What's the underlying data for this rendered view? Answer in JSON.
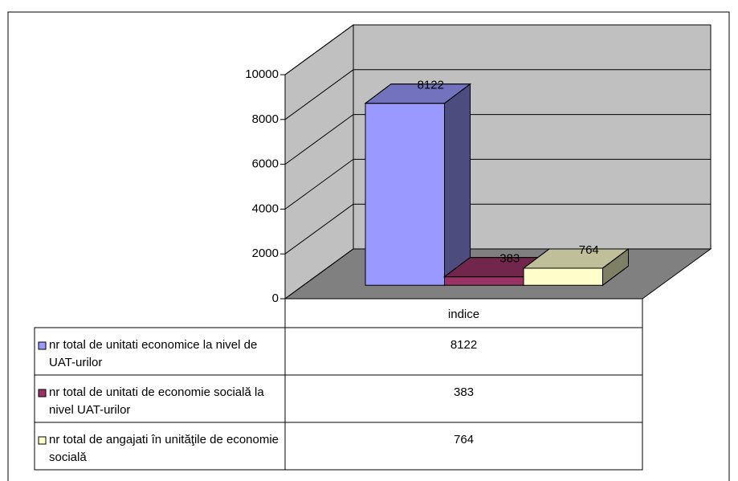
{
  "chart_data": {
    "type": "bar3d",
    "categories": [
      "indice"
    ],
    "series": [
      {
        "name": "nr total de unitati economice la nivel de UAT-urilor",
        "color": "#9999ff",
        "values": [
          8122
        ]
      },
      {
        "name": "nr total de unitati de economie socială la nivel UAT-urilor",
        "color": "#993366",
        "values": [
          383
        ]
      },
      {
        "name": "nr total de angajati în unităţile de economie socială",
        "color": "#ffffcc",
        "values": [
          764
        ]
      }
    ],
    "ylim": [
      0,
      10000
    ],
    "yticks": [
      0,
      2000,
      4000,
      6000,
      8000,
      10000
    ],
    "grid": true,
    "wall_color": "#c0c0c0",
    "floor_color": "#808080"
  }
}
